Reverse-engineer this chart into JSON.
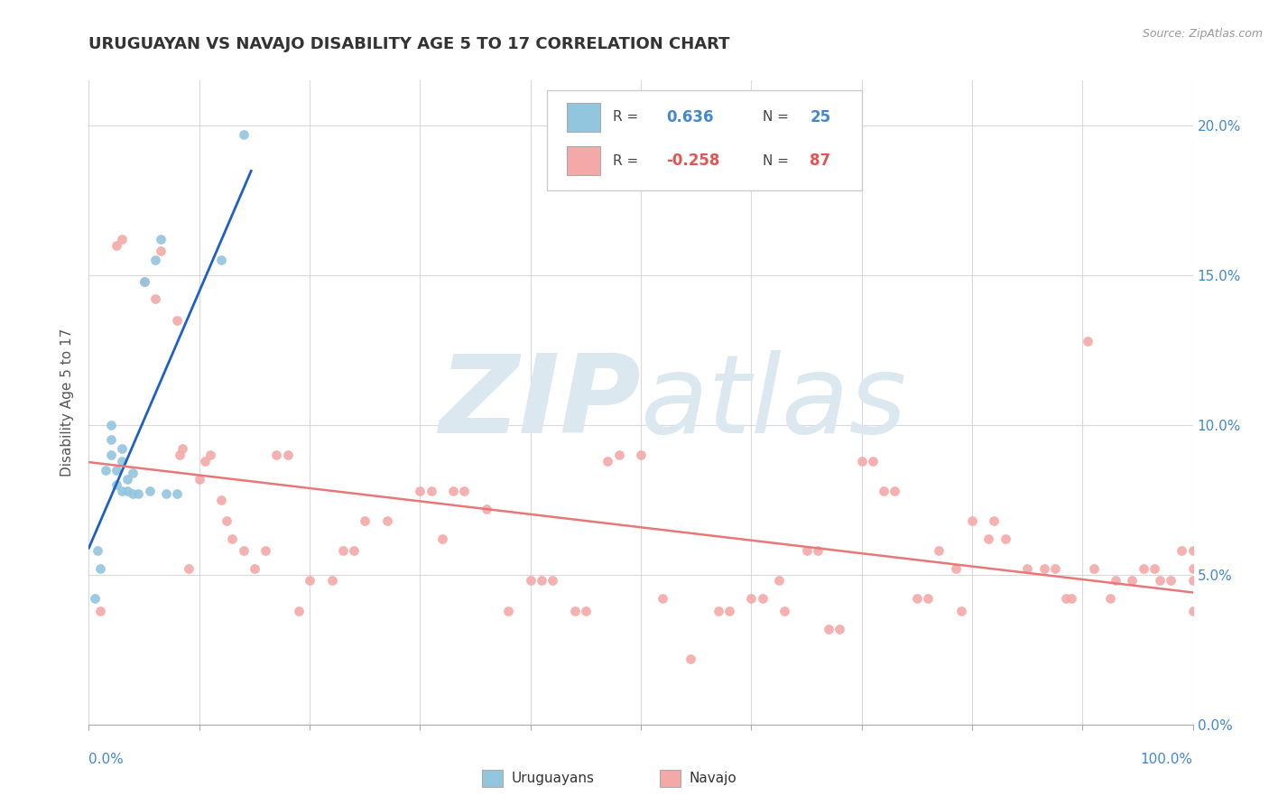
{
  "title": "URUGUAYAN VS NAVAJO DISABILITY AGE 5 TO 17 CORRELATION CHART",
  "source": "Source: ZipAtlas.com",
  "ylabel_label": "Disability Age 5 to 17",
  "x_min": 0.0,
  "x_max": 1.0,
  "y_min": 0.0,
  "y_max": 0.215,
  "uruguayan_R": 0.636,
  "uruguayan_N": 25,
  "navajo_R": -0.258,
  "navajo_N": 87,
  "uruguayan_color": "#92c5de",
  "navajo_color": "#f4a9a8",
  "uruguayan_line_color": "#2060c0",
  "navajo_line_color": "#e87878",
  "x_ticks": [
    0.0,
    0.1,
    0.2,
    0.3,
    0.4,
    0.5,
    0.6,
    0.7,
    0.8,
    0.9,
    1.0
  ],
  "y_ticks": [
    0.0,
    0.05,
    0.1,
    0.15,
    0.2
  ],
  "y_tick_labels_right": [
    "0.0%",
    "5.0%",
    "10.0%",
    "15.0%",
    "20.0%"
  ],
  "uruguayan_x": [
    0.005,
    0.008,
    0.01,
    0.015,
    0.02,
    0.02,
    0.02,
    0.025,
    0.025,
    0.03,
    0.03,
    0.03,
    0.035,
    0.035,
    0.04,
    0.04,
    0.045,
    0.05,
    0.055,
    0.06,
    0.065,
    0.07,
    0.08,
    0.12,
    0.14
  ],
  "uruguayan_y": [
    0.042,
    0.058,
    0.052,
    0.085,
    0.09,
    0.095,
    0.1,
    0.08,
    0.085,
    0.078,
    0.088,
    0.092,
    0.078,
    0.082,
    0.077,
    0.084,
    0.077,
    0.148,
    0.078,
    0.155,
    0.162,
    0.077,
    0.077,
    0.155,
    0.197
  ],
  "navajo_x": [
    0.01,
    0.025,
    0.03,
    0.05,
    0.06,
    0.065,
    0.08,
    0.082,
    0.085,
    0.09,
    0.1,
    0.105,
    0.11,
    0.12,
    0.125,
    0.13,
    0.14,
    0.15,
    0.16,
    0.17,
    0.18,
    0.19,
    0.2,
    0.22,
    0.23,
    0.24,
    0.25,
    0.27,
    0.3,
    0.31,
    0.32,
    0.33,
    0.34,
    0.36,
    0.38,
    0.4,
    0.41,
    0.42,
    0.44,
    0.45,
    0.47,
    0.48,
    0.5,
    0.52,
    0.545,
    0.57,
    0.58,
    0.6,
    0.61,
    0.625,
    0.63,
    0.65,
    0.66,
    0.67,
    0.68,
    0.7,
    0.71,
    0.72,
    0.73,
    0.75,
    0.76,
    0.77,
    0.785,
    0.79,
    0.8,
    0.815,
    0.82,
    0.83,
    0.85,
    0.865,
    0.875,
    0.885,
    0.89,
    0.905,
    0.91,
    0.925,
    0.93,
    0.945,
    0.955,
    0.965,
    0.97,
    0.98,
    0.99,
    1.0,
    1.0,
    1.0,
    1.0
  ],
  "navajo_y": [
    0.038,
    0.16,
    0.162,
    0.148,
    0.142,
    0.158,
    0.135,
    0.09,
    0.092,
    0.052,
    0.082,
    0.088,
    0.09,
    0.075,
    0.068,
    0.062,
    0.058,
    0.052,
    0.058,
    0.09,
    0.09,
    0.038,
    0.048,
    0.048,
    0.058,
    0.058,
    0.068,
    0.068,
    0.078,
    0.078,
    0.062,
    0.078,
    0.078,
    0.072,
    0.038,
    0.048,
    0.048,
    0.048,
    0.038,
    0.038,
    0.088,
    0.09,
    0.09,
    0.042,
    0.022,
    0.038,
    0.038,
    0.042,
    0.042,
    0.048,
    0.038,
    0.058,
    0.058,
    0.032,
    0.032,
    0.088,
    0.088,
    0.078,
    0.078,
    0.042,
    0.042,
    0.058,
    0.052,
    0.038,
    0.068,
    0.062,
    0.068,
    0.062,
    0.052,
    0.052,
    0.052,
    0.042,
    0.042,
    0.128,
    0.052,
    0.042,
    0.048,
    0.048,
    0.052,
    0.052,
    0.048,
    0.048,
    0.058,
    0.038,
    0.048,
    0.058,
    0.052
  ],
  "background_color": "#ffffff",
  "grid_color": "#d0d0d0",
  "watermark_zip": "ZIP",
  "watermark_atlas": "atlas",
  "watermark_color": "#dce8f0",
  "tick_color": "#4488cc",
  "label_color": "#555555"
}
